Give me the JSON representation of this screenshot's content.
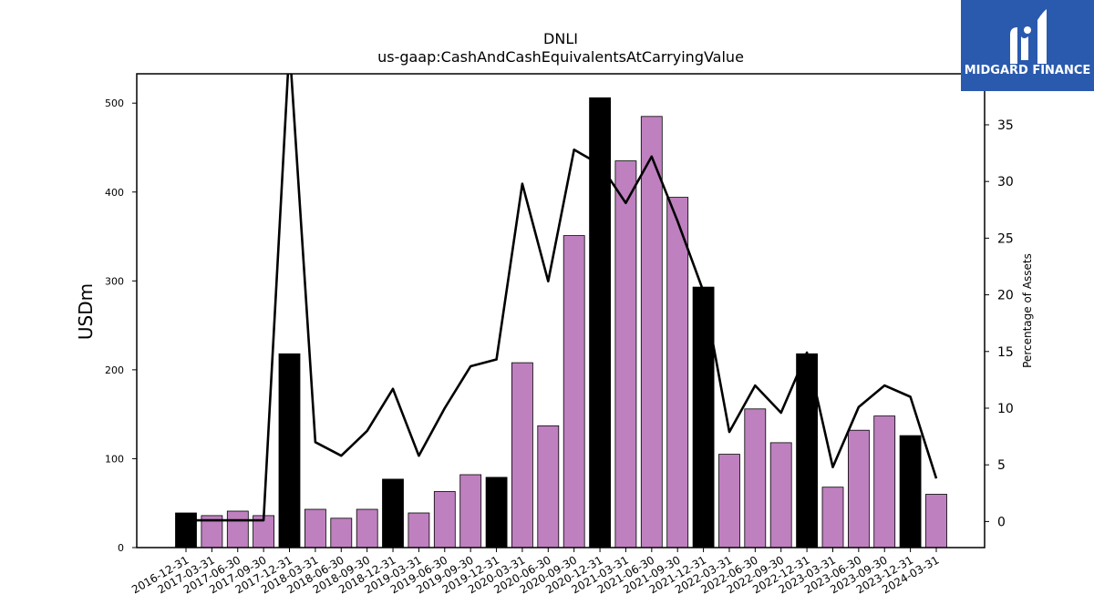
{
  "logo": {
    "text": "MIDGARD FINANCE",
    "bg_color": "#2a5aad"
  },
  "chart_data": {
    "type": "bar",
    "title": "DNLI",
    "subtitle": "us-gaap:CashAndCashEquivalentsAtCarryingValue",
    "ylabel": "USDm",
    "y2label": "Percentage of Assets",
    "ylim": [
      0,
      533
    ],
    "y2lim": [
      -2.3,
      39.5
    ],
    "yticks": [
      0,
      100,
      200,
      300,
      400,
      500
    ],
    "y2ticks": [
      0,
      5,
      10,
      15,
      20,
      25,
      30,
      35
    ],
    "colors": {
      "annual": "#000000",
      "quarterly": "#bf80bf",
      "line": "#000000"
    },
    "categories": [
      "2016-12-31",
      "2017-03-31",
      "2017-06-30",
      "2017-09-30",
      "2017-12-31",
      "2018-03-31",
      "2018-06-30",
      "2018-09-30",
      "2018-12-31",
      "2019-03-31",
      "2019-06-30",
      "2019-09-30",
      "2019-12-31",
      "2020-03-31",
      "2020-06-30",
      "2020-09-30",
      "2020-12-31",
      "2021-03-31",
      "2021-06-30",
      "2021-09-30",
      "2021-12-31",
      "2022-03-31",
      "2022-06-30",
      "2022-09-30",
      "2022-12-31",
      "2023-03-31",
      "2023-06-30",
      "2023-09-30",
      "2023-12-31",
      "2024-03-31"
    ],
    "series": [
      {
        "type": "bar",
        "values": [
          39,
          36,
          41,
          36,
          218,
          43,
          33,
          43,
          77,
          39,
          63,
          82,
          79,
          208,
          137,
          351,
          506,
          435,
          485,
          394,
          293,
          105,
          156,
          118,
          218,
          68,
          132,
          148,
          126,
          60
        ]
      },
      {
        "type": "line",
        "values": [
          0.1,
          0.1,
          0.1,
          0.1,
          42,
          7,
          5.8,
          8,
          11.7,
          5.8,
          10,
          13.7,
          14.3,
          29.8,
          21.2,
          32.8,
          31.5,
          28.1,
          32.2,
          26.5,
          20.3,
          7.9,
          12,
          9.6,
          14.9,
          4.8,
          10.1,
          12,
          11,
          3.8
        ]
      }
    ],
    "annual_flags": [
      1,
      0,
      0,
      0,
      1,
      0,
      0,
      0,
      1,
      0,
      0,
      0,
      1,
      0,
      0,
      0,
      1,
      0,
      0,
      0,
      1,
      0,
      0,
      0,
      1,
      0,
      0,
      0,
      1,
      0
    ]
  }
}
